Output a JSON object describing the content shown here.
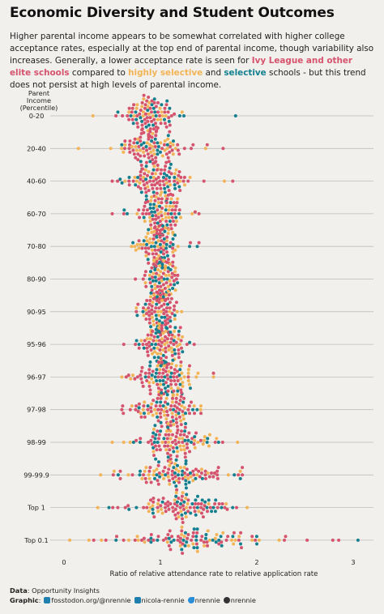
{
  "title": "Economic Diversity and Student Outcomes",
  "subtitle": {
    "part1": "Higher parental income appears to be somewhat correlated with higher college acceptance rates, especially at the top end of parental income, though variability also increases. Generally, a lower acceptance rate is seen for ",
    "ivy": "Ivy League and other elite schools",
    "part2": " compared to ",
    "highly": "highly selective",
    "part3": " and ",
    "selective": "selective",
    "part4": " schools - but this trend does not persist at high levels of parental income."
  },
  "colors": {
    "ivy": "#d6536d",
    "highly_selective": "#f2b456",
    "selective": "#14808f",
    "background": "#f1f0ec",
    "gridline": "#bdbdbd"
  },
  "caption": {
    "data_label": "Data",
    "data_text": ": Opportunity Insights",
    "graphic_label": "Graphic",
    "mastodon": "fosstodon.org/@nrennie",
    "linkedin": "nicola-rennie",
    "bluesky": "nrennie",
    "github": "nrennie"
  },
  "chart_data": {
    "type": "scatter",
    "subtype": "beeswarm",
    "ylabel": "Parent Income (Percentile)",
    "xlabel": "Ratio of relative attendance rate to relative application rate",
    "xlim": [
      0,
      3.2
    ],
    "xticks": [
      0,
      1,
      2,
      3
    ],
    "categories": [
      "0-20",
      "20-40",
      "40-60",
      "60-70",
      "70-80",
      "80-90",
      "90-95",
      "95-96",
      "96-97",
      "97-98",
      "98-99",
      "99-99.9",
      "Top 1",
      "Top 0.1"
    ],
    "series": [
      {
        "key": "ivy",
        "color": "#d6536d"
      },
      {
        "key": "highly_selective",
        "color": "#f2b456"
      },
      {
        "key": "selective",
        "color": "#14808f"
      }
    ],
    "distribution": [
      {
        "category": "0-20",
        "median": 0.9,
        "spread": 0.13,
        "min": 0.3,
        "max": 1.78,
        "n": 110
      },
      {
        "category": "20-40",
        "median": 0.92,
        "spread": 0.14,
        "min": 0.15,
        "max": 1.65,
        "n": 110
      },
      {
        "category": "40-60",
        "median": 0.97,
        "spread": 0.14,
        "min": 0.5,
        "max": 1.75,
        "n": 110
      },
      {
        "category": "60-70",
        "median": 1.0,
        "spread": 0.11,
        "min": 0.5,
        "max": 1.4,
        "n": 110
      },
      {
        "category": "70-80",
        "median": 1.0,
        "spread": 0.1,
        "min": 0.7,
        "max": 1.4,
        "n": 110
      },
      {
        "category": "80-90",
        "median": 0.99,
        "spread": 0.08,
        "min": 0.74,
        "max": 1.18,
        "n": 110
      },
      {
        "category": "90-95",
        "median": 1.0,
        "spread": 0.08,
        "min": 0.75,
        "max": 1.22,
        "n": 110
      },
      {
        "category": "95-96",
        "median": 1.02,
        "spread": 0.12,
        "min": 0.62,
        "max": 1.35,
        "n": 110
      },
      {
        "category": "96-97",
        "median": 1.05,
        "spread": 0.15,
        "min": 0.6,
        "max": 1.55,
        "n": 110
      },
      {
        "category": "97-98",
        "median": 1.08,
        "spread": 0.15,
        "min": 0.6,
        "max": 1.42,
        "n": 110
      },
      {
        "category": "98-99",
        "median": 1.15,
        "spread": 0.18,
        "min": 0.5,
        "max": 1.8,
        "n": 110
      },
      {
        "category": "99-99.9",
        "median": 1.18,
        "spread": 0.25,
        "min": 0.38,
        "max": 1.85,
        "n": 110
      },
      {
        "category": "Top 1",
        "median": 1.22,
        "spread": 0.24,
        "min": 0.35,
        "max": 1.9,
        "n": 110
      },
      {
        "category": "Top 0.1",
        "median": 1.2,
        "spread": 0.38,
        "min": 0.06,
        "max": 3.05,
        "n": 110
      }
    ],
    "grid": true,
    "legend": "inline-in-subtitle"
  }
}
